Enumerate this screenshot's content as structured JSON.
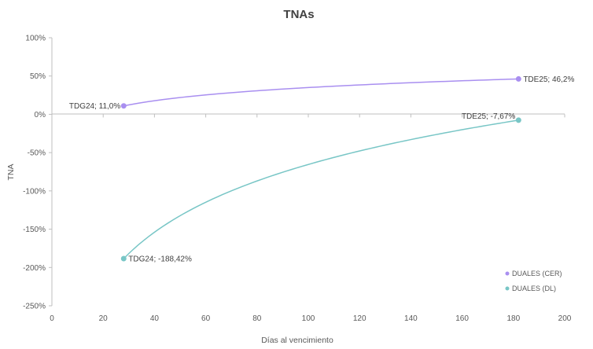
{
  "chart_data": {
    "type": "scatter",
    "title": "TNAs",
    "xlabel": "Días al vencimiento",
    "ylabel": "TNA",
    "xlim": [
      0,
      200
    ],
    "ylim": [
      -250,
      100
    ],
    "x_ticks": [
      "0",
      "20",
      "40",
      "60",
      "80",
      "100",
      "120",
      "140",
      "160",
      "180",
      "200"
    ],
    "y_ticks": [
      "100%",
      "50%",
      "0%",
      "-50%",
      "-100%",
      "-150%",
      "-200%",
      "-250%"
    ],
    "x_tick_values": [
      0,
      20,
      40,
      60,
      80,
      100,
      120,
      140,
      160,
      180,
      200
    ],
    "y_tick_values": [
      100,
      50,
      0,
      -50,
      -100,
      -150,
      -200,
      -250
    ],
    "grid": false,
    "legend_position": "bottom-right",
    "series": [
      {
        "name": "DUALES (CER)",
        "color": "#a98ff0",
        "trendline": "logarithmic",
        "points": [
          {
            "x": 28,
            "y": 11.0,
            "label": "TDG24; 11,0%"
          },
          {
            "x": 182,
            "y": 46.2,
            "label": "TDE25; 46,2%"
          }
        ]
      },
      {
        "name": "DUALES (DL)",
        "color": "#78c6c6",
        "trendline": "logarithmic",
        "points": [
          {
            "x": 28,
            "y": -188.42,
            "label": "TDG24; -188,42%"
          },
          {
            "x": 182,
            "y": -7.67,
            "label": "TDE25; -7,67%"
          }
        ]
      }
    ]
  }
}
